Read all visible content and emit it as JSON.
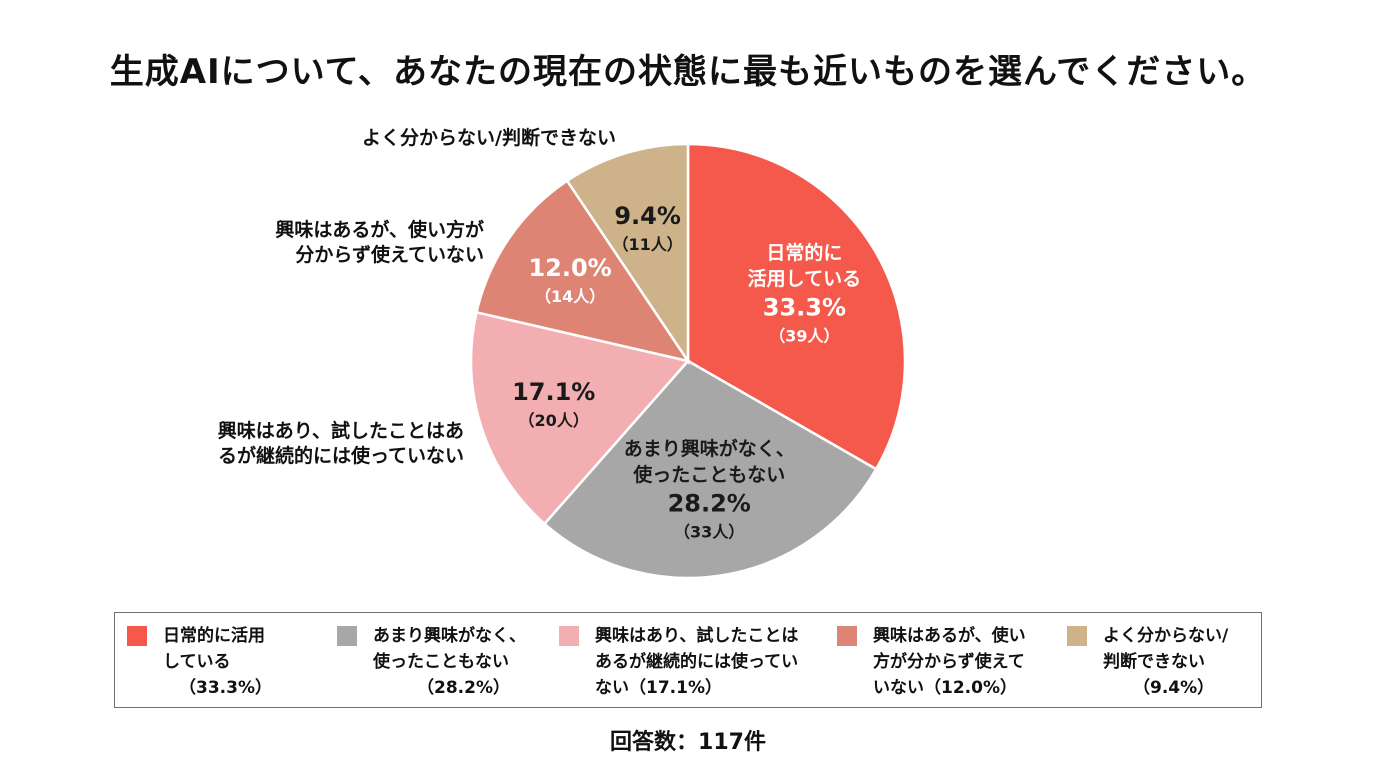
{
  "chart_data": {
    "type": "pie",
    "title": "生成AIについて、あなたの現在の状態に最も近いものを選んでください。",
    "total_label": "回答数：117件",
    "slices": [
      {
        "name": "日常的に活用している",
        "in_label_lines": [
          "日常的に",
          "活用している"
        ],
        "legend_lines": [
          "日常的に活用",
          "している"
        ],
        "legend_pct": "（33.3%）",
        "percent": 33.3,
        "percent_label": "33.3%",
        "count": 39,
        "count_label": "（39人）",
        "color": "#f4594c",
        "label_color": "#ffffff"
      },
      {
        "name": "あまり興味がなく、使ったこともない",
        "in_label_lines": [
          "あまり興味がなく、",
          "使ったこともない"
        ],
        "legend_lines": [
          "あまり興味がなく、",
          "使ったこともない"
        ],
        "legend_pct": "（28.2%）",
        "percent": 28.2,
        "percent_label": "28.2%",
        "count": 33,
        "count_label": "（33人）",
        "color": "#a7a7a7",
        "label_color": "#1a1a1a"
      },
      {
        "name": "興味はあり、試したことはあるが継続的には使っていない",
        "in_label_lines": [],
        "outer_label_lines": [
          "興味はあり、試したことはあ",
          "るが継続的には使っていない"
        ],
        "legend_lines": [
          "興味はあり、試したことは",
          "あるが継続的には使ってい",
          "ない（17.1%）"
        ],
        "legend_pct": "",
        "percent": 17.1,
        "percent_label": "17.1%",
        "count": 20,
        "count_label": "（20人）",
        "color": "#f2aeb0",
        "label_color": "#1a1a1a"
      },
      {
        "name": "興味はあるが、使い方が分からず使えていない",
        "in_label_lines": [],
        "outer_label_lines": [
          "興味はあるが、使い方が",
          "分からず使えていない"
        ],
        "legend_lines": [
          "興味はあるが、使い",
          "方が分からず使えて",
          "いない（12.0%）"
        ],
        "legend_pct": "",
        "percent": 12.0,
        "percent_label": "12.0%",
        "count": 14,
        "count_label": "（14人）",
        "color": "#de8475",
        "label_color": "#ffffff"
      },
      {
        "name": "よく分からない/判断できない",
        "in_label_lines": [],
        "outer_label_lines": [
          "よく分からない/判断できない"
        ],
        "legend_lines": [
          "よく分からない/",
          "判断できない"
        ],
        "legend_pct": "（9.4%）",
        "percent": 9.4,
        "percent_label": "9.4%",
        "count": 11,
        "count_label": "（11人）",
        "color": "#cdb28a",
        "label_color": "#1a1a1a"
      }
    ]
  }
}
